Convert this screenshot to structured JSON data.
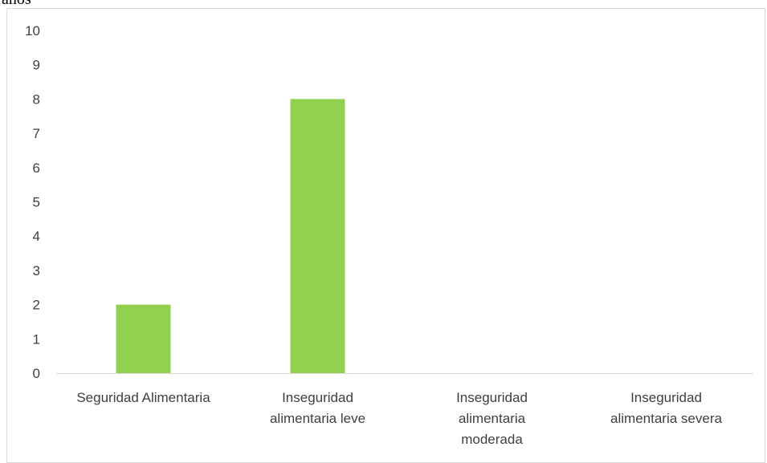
{
  "header": {
    "cropped_text": "años"
  },
  "chart_data": {
    "type": "bar",
    "categories": [
      [
        "Seguridad Alimentaria"
      ],
      [
        "Inseguridad",
        "alimentaria leve"
      ],
      [
        "Inseguridad",
        "alimentaria",
        "moderada"
      ],
      [
        "Inseguridad",
        "alimentaria severa"
      ]
    ],
    "values": [
      2,
      8,
      0,
      0
    ],
    "yticks": [
      "0",
      "1",
      "2",
      "3",
      "4",
      "5",
      "6",
      "7",
      "8",
      "9",
      "10"
    ],
    "ylim": [
      0,
      10
    ],
    "title": "",
    "xlabel": "",
    "ylabel": "",
    "grid": false,
    "bar_color": "#92d050",
    "axis_color": "#d9d9d9",
    "label_color": "#404040"
  }
}
